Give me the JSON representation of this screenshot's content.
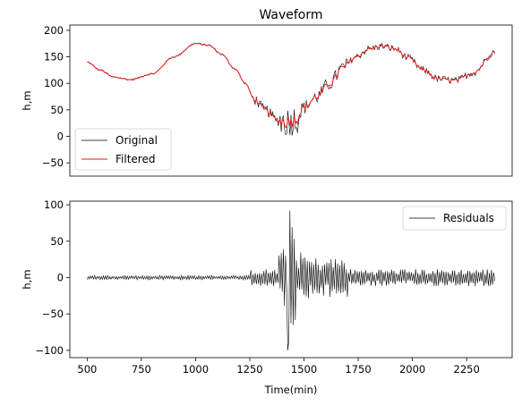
{
  "chart_data": [
    {
      "type": "line",
      "title": "Waveform",
      "xlabel": "",
      "ylabel": "h,m",
      "xlim": [
        420,
        2460
      ],
      "ylim": [
        -75,
        210
      ],
      "yticks": [
        -50,
        0,
        50,
        100,
        150,
        200
      ],
      "xticks_visible": false,
      "legend": "lower-left",
      "series": [
        {
          "name": "Original",
          "color": "#000000"
        },
        {
          "name": "Filtered",
          "color": "#e41a1c"
        }
      ],
      "anchors": {
        "x": [
          500,
          560,
          620,
          700,
          800,
          900,
          1000,
          1060,
          1120,
          1180,
          1230,
          1270,
          1320,
          1380,
          1420,
          1460,
          1500,
          1560,
          1620,
          1680,
          1740,
          1800,
          1860,
          1920,
          1980,
          2050,
          2120,
          2200,
          2280,
          2380
        ],
        "y": [
          140,
          125,
          112,
          107,
          118,
          150,
          175,
          172,
          155,
          128,
          100,
          70,
          50,
          30,
          28,
          32,
          55,
          75,
          100,
          130,
          150,
          165,
          170,
          165,
          148,
          125,
          108,
          105,
          120,
          160
        ]
      },
      "noise_original": [
        [
          500,
          1250,
          2
        ],
        [
          1250,
          1380,
          10
        ],
        [
          1380,
          1480,
          30
        ],
        [
          1480,
          1700,
          14
        ],
        [
          1700,
          2380,
          7
        ]
      ],
      "noise_filtered": [
        [
          500,
          1250,
          1
        ],
        [
          1250,
          1380,
          5
        ],
        [
          1380,
          1480,
          13
        ],
        [
          1480,
          1700,
          7
        ],
        [
          1700,
          2380,
          4
        ]
      ]
    },
    {
      "type": "line",
      "title": "",
      "xlabel": "Time(min)",
      "ylabel": "h,m",
      "xlim": [
        420,
        2460
      ],
      "ylim": [
        -110,
        105
      ],
      "xticks": [
        500,
        750,
        1000,
        1250,
        1500,
        1750,
        2000,
        2250
      ],
      "yticks": [
        -100,
        -50,
        0,
        50,
        100
      ],
      "legend": "top-right",
      "series": [
        {
          "name": "Residuals",
          "color": "#000000"
        }
      ],
      "envelope": [
        [
          500,
          1250,
          3
        ],
        [
          1250,
          1380,
          12
        ],
        [
          1380,
          1420,
          40
        ],
        [
          1420,
          1460,
          90
        ],
        [
          1460,
          1520,
          35
        ],
        [
          1520,
          1700,
          28
        ],
        [
          1700,
          2380,
          12
        ]
      ],
      "sample_step_min": 5
    }
  ]
}
